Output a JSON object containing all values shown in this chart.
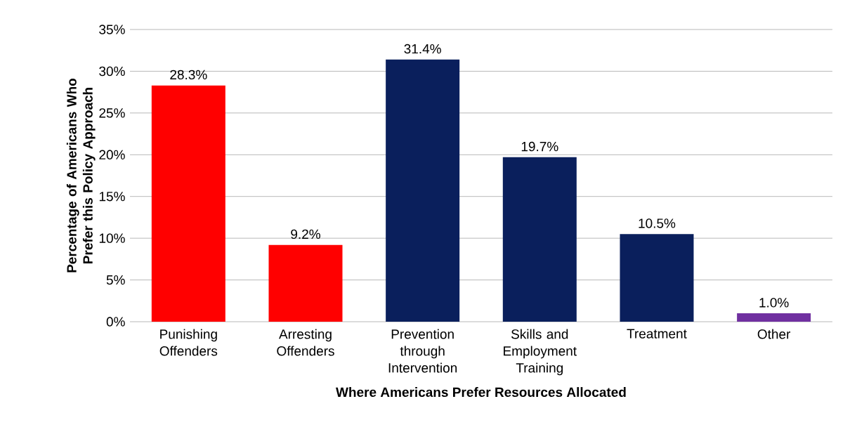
{
  "chart_data": {
    "type": "bar",
    "xlabel": "Where Americans Prefer Resources Allocated",
    "ylabel": "Percentage of Americans Who Prefer this Policy Approach",
    "categories": [
      "Punishing Offenders",
      "Arresting Offenders",
      "Prevention through Intervention",
      "Skills and Employment Training",
      "Treatment",
      "Other"
    ],
    "values": [
      28.3,
      9.2,
      31.4,
      19.7,
      10.5,
      1.0
    ],
    "colors": [
      "#ff0000",
      "#ff0000",
      "#0a1f5c",
      "#0a1f5c",
      "#0a1f5c",
      "#7030a0"
    ],
    "value_labels": [
      "28.3%",
      "9.2%",
      "31.4%",
      "19.7%",
      "10.5%",
      "1.0%"
    ],
    "ylim": [
      0,
      35
    ],
    "yticks": [
      {
        "value": 0,
        "label": "0%"
      },
      {
        "value": 5,
        "label": "5%"
      },
      {
        "value": 10,
        "label": "10%"
      },
      {
        "value": 15,
        "label": "15%"
      },
      {
        "value": 20,
        "label": "20%"
      },
      {
        "value": 25,
        "label": "25%"
      },
      {
        "value": 30,
        "label": "30%"
      },
      {
        "value": 35,
        "label": "35%"
      }
    ],
    "grid": "y"
  }
}
